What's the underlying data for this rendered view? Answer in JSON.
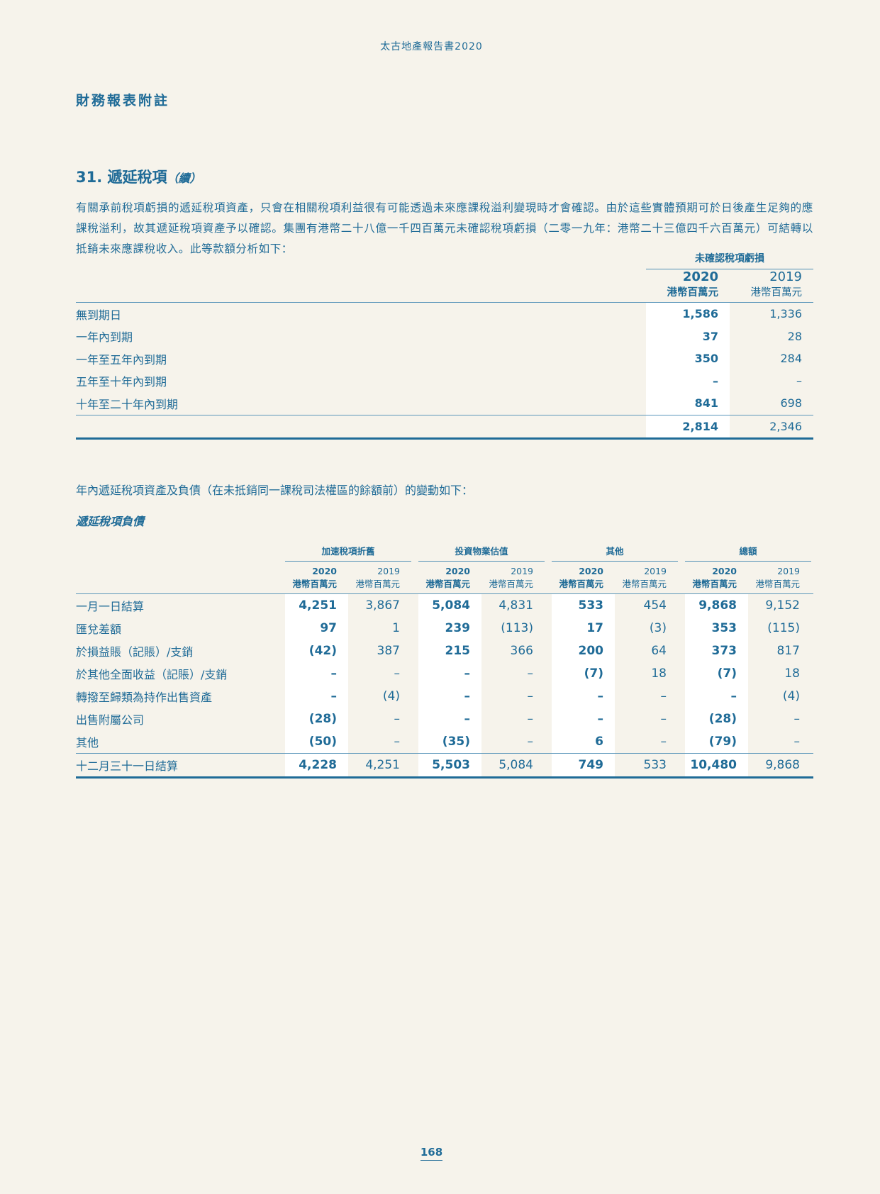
{
  "header": {
    "running_head": "太古地產報告書2020",
    "section": "財務報表附註"
  },
  "note": {
    "title": "31. 遞延稅項",
    "title_cont": "（續）",
    "paragraph": "有關承前稅項虧損的遞延稅項資產，只會在相關稅項利益很有可能透過未來應課稅溢利變現時才會確認。由於這些實體預期可於日後產生足夠的應課稅溢利，故其遞延稅項資產予以確認。集團有港幣二十八億一千四百萬元未確認稅項虧損（二零一九年：港幣二十三億四千六百萬元）可結轉以抵銷未來應課稅收入。此等款額分析如下："
  },
  "table1": {
    "group": "未確認稅項虧損",
    "years": [
      "2020",
      "2019"
    ],
    "unit": "港幣百萬元",
    "rows": [
      {
        "label": "無到期日",
        "v": [
          "1,586",
          "1,336"
        ]
      },
      {
        "label": "一年內到期",
        "v": [
          "37",
          "28"
        ]
      },
      {
        "label": "一年至五年內到期",
        "v": [
          "350",
          "284"
        ]
      },
      {
        "label": "五年至十年內到期",
        "v": [
          "–",
          "–"
        ]
      },
      {
        "label": "十年至二十年內到期",
        "v": [
          "841",
          "698"
        ]
      }
    ],
    "total": [
      "2,814",
      "2,346"
    ]
  },
  "movement_intro": "年內遞延稅項資產及負債（在未抵銷同一課稅司法權區的餘額前）的變動如下：",
  "liabilities_title": "遞延稅項負債",
  "table2": {
    "groups": [
      "加速稅項折舊",
      "投資物業估值",
      "其他",
      "總額"
    ],
    "years": [
      "2020",
      "2019"
    ],
    "unit": "港幣百萬元",
    "rows": [
      {
        "label": "一月一日結算",
        "v": [
          "4,251",
          "3,867",
          "5,084",
          "4,831",
          "533",
          "454",
          "9,868",
          "9,152"
        ]
      },
      {
        "label": "匯兌差額",
        "v": [
          "97",
          "1",
          "239",
          "(113)",
          "17",
          "(3)",
          "353",
          "(115)"
        ]
      },
      {
        "label": "於損益賬（記賬）/支銷",
        "v": [
          "(42)",
          "387",
          "215",
          "366",
          "200",
          "64",
          "373",
          "817"
        ]
      },
      {
        "label": "於其他全面收益（記賬）/支銷",
        "v": [
          "–",
          "–",
          "–",
          "–",
          "(7)",
          "18",
          "(7)",
          "18"
        ]
      },
      {
        "label": "轉撥至歸類為持作出售資產",
        "v": [
          "–",
          "(4)",
          "–",
          "–",
          "–",
          "–",
          "–",
          "(4)"
        ]
      },
      {
        "label": "出售附屬公司",
        "v": [
          "(28)",
          "–",
          "–",
          "–",
          "–",
          "–",
          "(28)",
          "–"
        ]
      },
      {
        "label": "其他",
        "v": [
          "(50)",
          "–",
          "(35)",
          "–",
          "6",
          "–",
          "(79)",
          "–"
        ]
      }
    ],
    "total": {
      "label": "十二月三十一日結算",
      "v": [
        "4,228",
        "4,251",
        "5,503",
        "5,084",
        "749",
        "533",
        "10,480",
        "9,868"
      ]
    }
  },
  "page_number": "168"
}
